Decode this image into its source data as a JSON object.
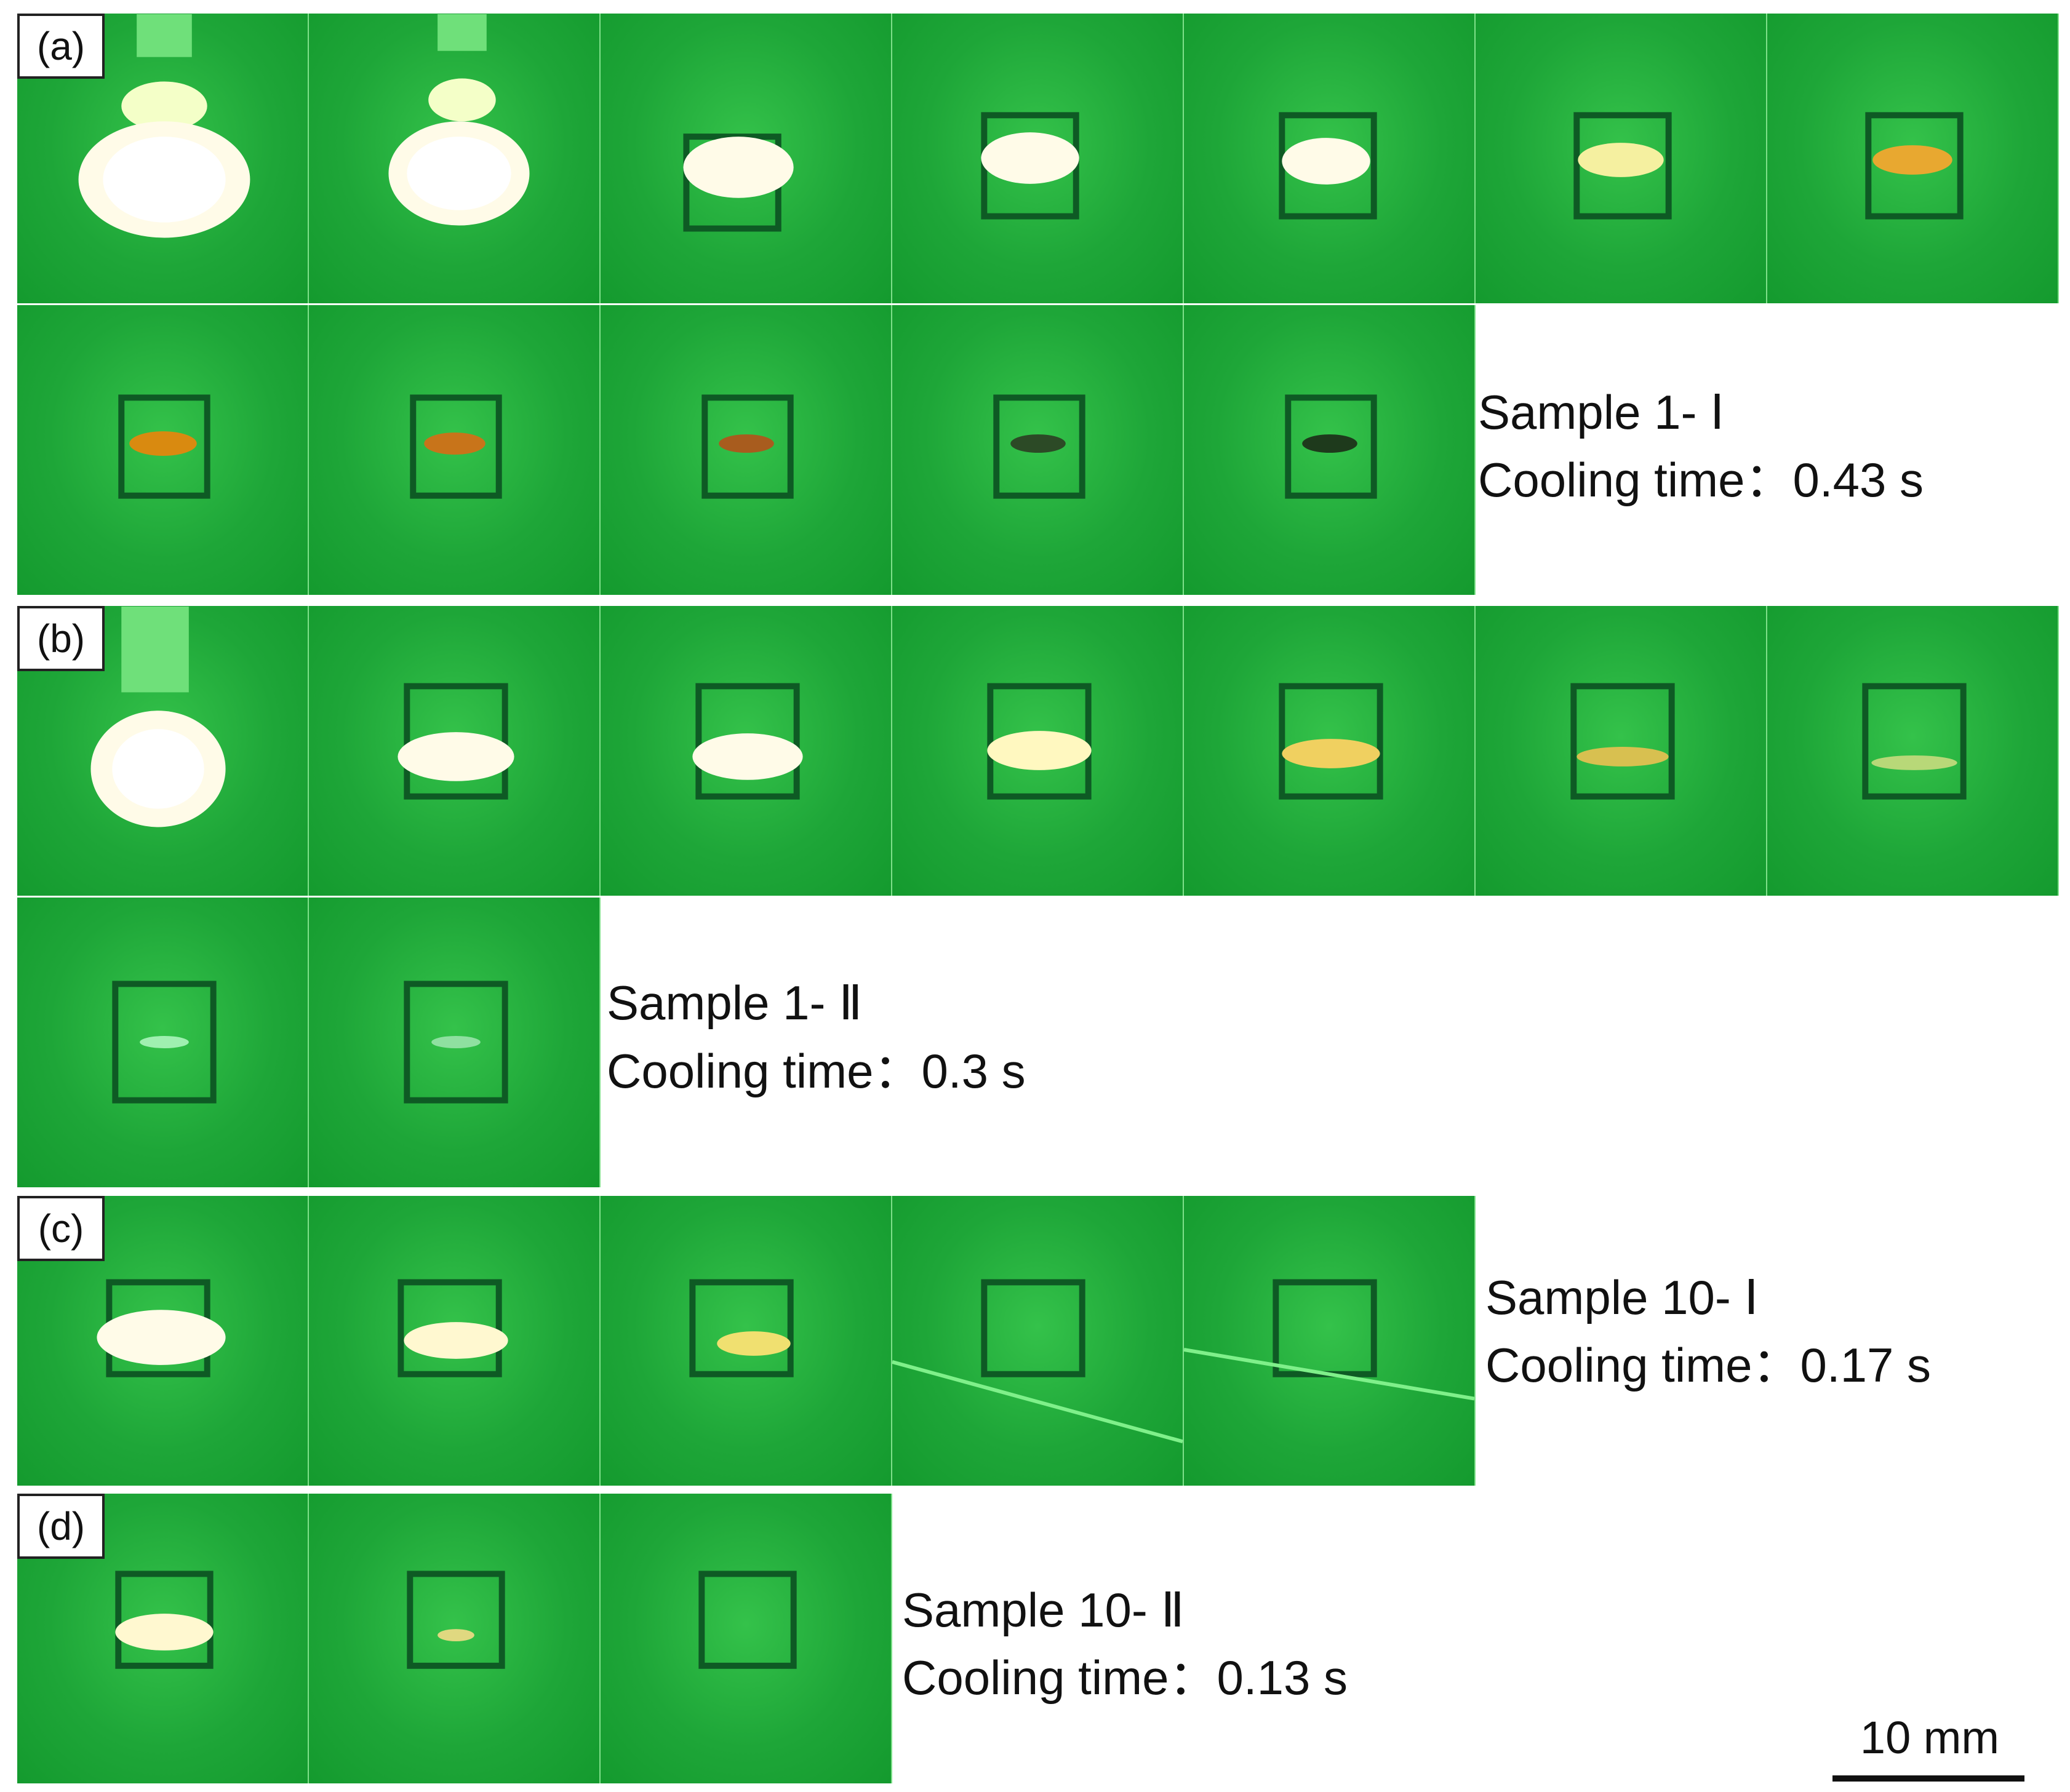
{
  "panels": [
    {
      "label": "(a)",
      "sample": "Sample 1- Ⅰ",
      "cooling": "Cooling time：0.43 s"
    },
    {
      "label": "(b)",
      "sample": "Sample 1- Ⅱ",
      "cooling": "Cooling time：0.3 s"
    },
    {
      "label": "(c)",
      "sample": "Sample 10- Ⅰ",
      "cooling": "Cooling time：0.17 s"
    },
    {
      "label": "(d)",
      "sample": "Sample 10- Ⅱ",
      "cooling": "Cooling time：0.13 s"
    }
  ],
  "scale_bar": {
    "label": "10 mm"
  },
  "colors": {
    "background": "#1ea638",
    "glow": "#fffbe0",
    "molten": "#d98a10"
  }
}
